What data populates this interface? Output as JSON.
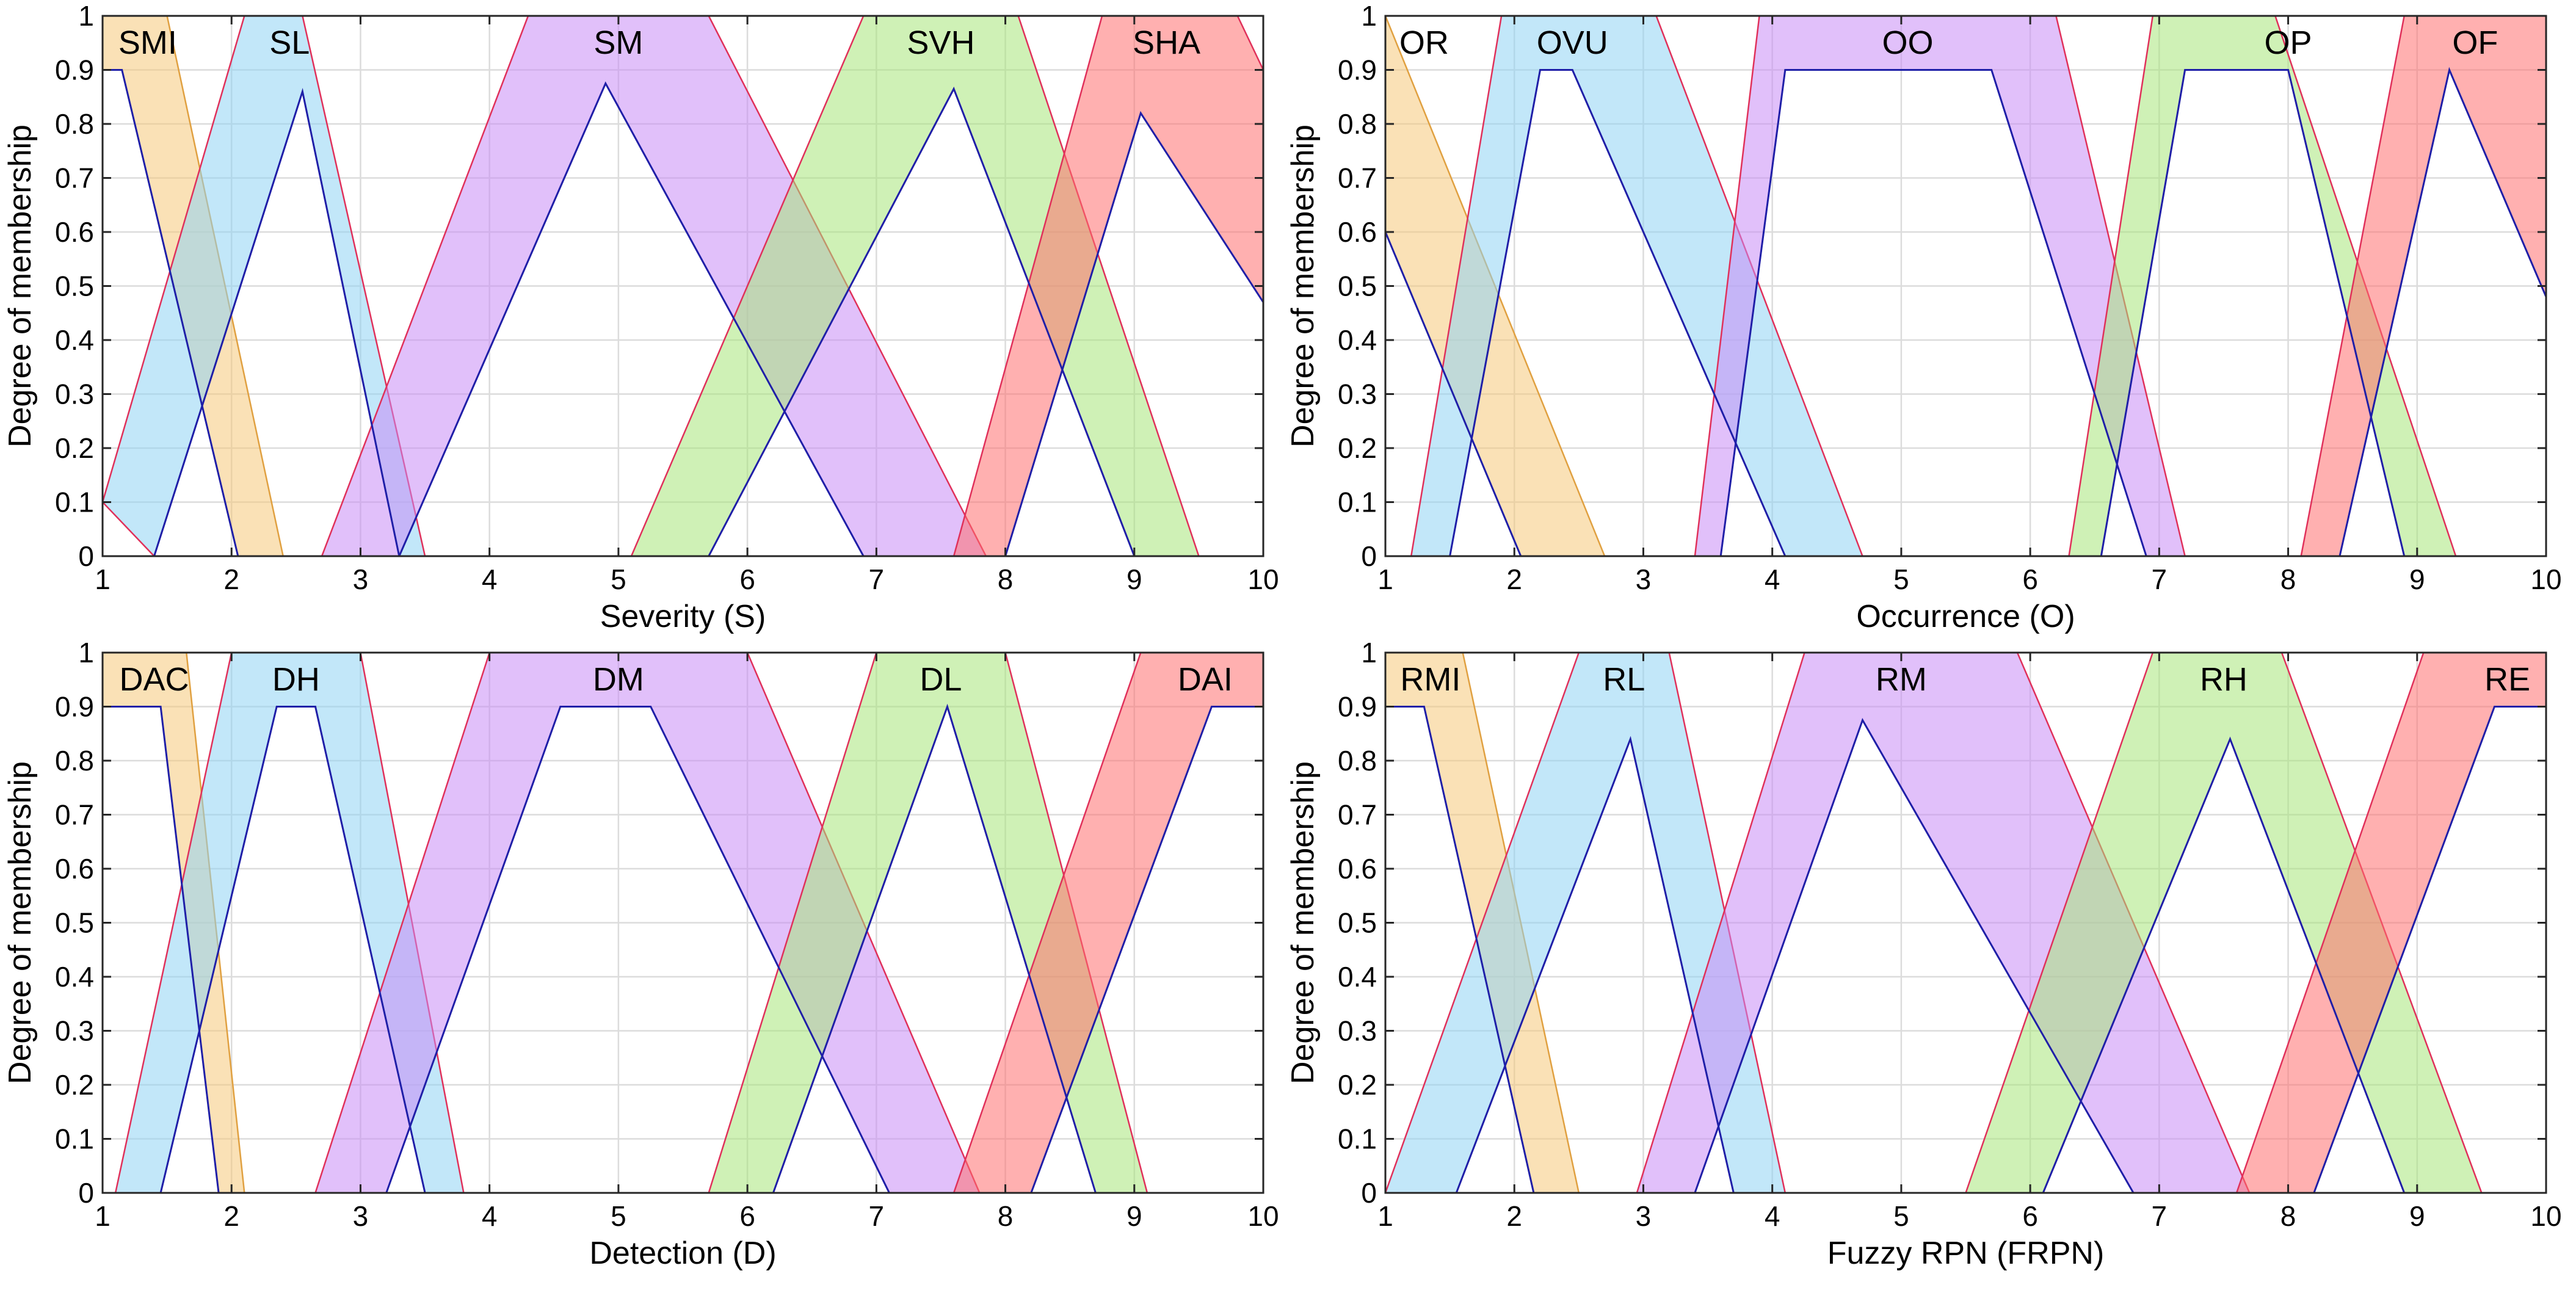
{
  "chart_data": [
    {
      "type": "area",
      "xlabel": "Severity (S)",
      "ylabel": "Degree of membership",
      "xlim": [
        1,
        10
      ],
      "ylim": [
        0,
        1
      ],
      "xticks": [
        "1",
        "2",
        "3",
        "4",
        "5",
        "6",
        "7",
        "8",
        "9",
        "10"
      ],
      "yticks": [
        "0",
        "0.1",
        "0.2",
        "0.3",
        "0.4",
        "0.5",
        "0.6",
        "0.7",
        "0.8",
        "0.9",
        "1"
      ],
      "grid": true,
      "series": [
        {
          "name": "SMI",
          "label_x": 1.35,
          "color": "#f5c97a",
          "upper": [
            [
              1,
              1
            ],
            [
              1.5,
              1
            ],
            [
              2.4,
              0
            ]
          ],
          "lower": [
            [
              1,
              0.9
            ],
            [
              1.15,
              0.9
            ],
            [
              2.05,
              0
            ]
          ]
        },
        {
          "name": "SL",
          "label_x": 2.45,
          "color": "#8fd3f4",
          "upper": [
            [
              1,
              0.1
            ],
            [
              2.1,
              1
            ],
            [
              2.55,
              1
            ],
            [
              3.5,
              0
            ]
          ],
          "lower": [
            [
              1.4,
              0
            ],
            [
              2.55,
              0.86
            ],
            [
              3.3,
              0
            ]
          ]
        },
        {
          "name": "SM",
          "label_x": 5.0,
          "color": "#c98cf5",
          "upper": [
            [
              2.7,
              0
            ],
            [
              4.3,
              1
            ],
            [
              5.7,
              1
            ],
            [
              7.85,
              0
            ]
          ],
          "lower": [
            [
              3.3,
              0
            ],
            [
              4.9,
              0.875
            ],
            [
              6.9,
              0
            ]
          ]
        },
        {
          "name": "SVH",
          "label_x": 7.5,
          "color": "#a8e67a",
          "upper": [
            [
              5.1,
              0
            ],
            [
              6.9,
              1
            ],
            [
              8.1,
              1
            ],
            [
              9.5,
              0
            ]
          ],
          "lower": [
            [
              5.7,
              0
            ],
            [
              7.6,
              0.865
            ],
            [
              9.0,
              0
            ]
          ]
        },
        {
          "name": "SHA",
          "label_x": 9.25,
          "color": "#ff6f6f",
          "upper": [
            [
              7.6,
              0
            ],
            [
              8.75,
              1
            ],
            [
              9.8,
              1
            ],
            [
              10,
              0.9
            ]
          ],
          "lower": [
            [
              8.0,
              0
            ],
            [
              9.05,
              0.82
            ],
            [
              10,
              0.47
            ]
          ]
        }
      ]
    },
    {
      "type": "area",
      "xlabel": "Occurrence (O)",
      "ylabel": "Degree of membership",
      "xlim": [
        1,
        10
      ],
      "ylim": [
        0,
        1
      ],
      "xticks": [
        "1",
        "2",
        "3",
        "4",
        "5",
        "6",
        "7",
        "8",
        "9",
        "10"
      ],
      "yticks": [
        "0",
        "0.1",
        "0.2",
        "0.3",
        "0.4",
        "0.5",
        "0.6",
        "0.7",
        "0.8",
        "0.9",
        "1"
      ],
      "grid": true,
      "series": [
        {
          "name": "OR",
          "label_x": 1.3,
          "color": "#f5c97a",
          "upper": [
            [
              1,
              1
            ],
            [
              2.7,
              0
            ]
          ],
          "lower": [
            [
              1,
              0.6
            ],
            [
              2.05,
              0
            ]
          ]
        },
        {
          "name": "OVU",
          "label_x": 2.45,
          "color": "#8fd3f4",
          "upper": [
            [
              1.2,
              0
            ],
            [
              1.9,
              1
            ],
            [
              3.1,
              1
            ],
            [
              4.7,
              0
            ]
          ],
          "lower": [
            [
              1.5,
              0
            ],
            [
              2.2,
              0.9
            ],
            [
              2.45,
              0.9
            ],
            [
              4.1,
              0
            ]
          ]
        },
        {
          "name": "OO",
          "label_x": 5.05,
          "color": "#c98cf5",
          "upper": [
            [
              3.4,
              0
            ],
            [
              3.9,
              1
            ],
            [
              6.2,
              1
            ],
            [
              7.2,
              0
            ]
          ],
          "lower": [
            [
              3.6,
              0
            ],
            [
              4.1,
              0.9
            ],
            [
              5.7,
              0.9
            ],
            [
              6.9,
              0
            ]
          ]
        },
        {
          "name": "OP",
          "label_x": 8.0,
          "color": "#a8e67a",
          "upper": [
            [
              6.3,
              0
            ],
            [
              6.95,
              1
            ],
            [
              7.9,
              1
            ],
            [
              9.3,
              0
            ]
          ],
          "lower": [
            [
              6.55,
              0
            ],
            [
              7.2,
              0.9
            ],
            [
              8.0,
              0.9
            ],
            [
              8.9,
              0
            ]
          ]
        },
        {
          "name": "OF",
          "label_x": 9.45,
          "color": "#ff6f6f",
          "upper": [
            [
              8.1,
              0
            ],
            [
              8.9,
              1
            ],
            [
              10,
              1
            ]
          ],
          "lower": [
            [
              8.4,
              0
            ],
            [
              9.25,
              0.9
            ],
            [
              10,
              0.48
            ]
          ]
        }
      ]
    },
    {
      "type": "area",
      "xlabel": "Detection (D)",
      "ylabel": "Degree of membership",
      "xlim": [
        1,
        10
      ],
      "ylim": [
        0,
        1
      ],
      "xticks": [
        "1",
        "2",
        "3",
        "4",
        "5",
        "6",
        "7",
        "8",
        "9",
        "10"
      ],
      "yticks": [
        "0",
        "0.1",
        "0.2",
        "0.3",
        "0.4",
        "0.5",
        "0.6",
        "0.7",
        "0.8",
        "0.9",
        "1"
      ],
      "grid": true,
      "series": [
        {
          "name": "DAC",
          "label_x": 1.4,
          "color": "#f5c97a",
          "upper": [
            [
              1,
              1
            ],
            [
              1.65,
              1
            ],
            [
              2.1,
              0
            ]
          ],
          "lower": [
            [
              1,
              0.9
            ],
            [
              1.45,
              0.9
            ],
            [
              1.9,
              0
            ]
          ]
        },
        {
          "name": "DH",
          "label_x": 2.5,
          "color": "#8fd3f4",
          "upper": [
            [
              1.1,
              0
            ],
            [
              2.0,
              1
            ],
            [
              3.0,
              1
            ],
            [
              3.8,
              0
            ]
          ],
          "lower": [
            [
              1.45,
              0
            ],
            [
              2.35,
              0.9
            ],
            [
              2.65,
              0.9
            ],
            [
              3.5,
              0
            ]
          ]
        },
        {
          "name": "DM",
          "label_x": 5.0,
          "color": "#c98cf5",
          "upper": [
            [
              2.65,
              0
            ],
            [
              4.0,
              1
            ],
            [
              6.0,
              1
            ],
            [
              7.8,
              0
            ]
          ],
          "lower": [
            [
              3.2,
              0
            ],
            [
              4.55,
              0.9
            ],
            [
              5.25,
              0.9
            ],
            [
              7.1,
              0
            ]
          ]
        },
        {
          "name": "DL",
          "label_x": 7.5,
          "color": "#a8e67a",
          "upper": [
            [
              5.7,
              0
            ],
            [
              7.0,
              1
            ],
            [
              8.0,
              1
            ],
            [
              9.1,
              0
            ]
          ],
          "lower": [
            [
              6.2,
              0
            ],
            [
              7.55,
              0.9
            ],
            [
              8.7,
              0
            ]
          ]
        },
        {
          "name": "DAI",
          "label_x": 9.55,
          "color": "#ff6f6f",
          "upper": [
            [
              7.6,
              0
            ],
            [
              9.05,
              1
            ],
            [
              10,
              1
            ]
          ],
          "lower": [
            [
              8.2,
              0
            ],
            [
              9.6,
              0.9
            ],
            [
              10,
              0.9
            ]
          ]
        }
      ]
    },
    {
      "type": "area",
      "xlabel": "Fuzzy RPN (FRPN)",
      "ylabel": "Degree of membership",
      "xlim": [
        1,
        10
      ],
      "ylim": [
        0,
        1
      ],
      "xticks": [
        "1",
        "2",
        "3",
        "4",
        "5",
        "6",
        "7",
        "8",
        "9",
        "10"
      ],
      "yticks": [
        "0",
        "0.1",
        "0.2",
        "0.3",
        "0.4",
        "0.5",
        "0.6",
        "0.7",
        "0.8",
        "0.9",
        "1"
      ],
      "grid": true,
      "series": [
        {
          "name": "RMI",
          "label_x": 1.35,
          "color": "#f5c97a",
          "upper": [
            [
              1,
              1
            ],
            [
              1.6,
              1
            ],
            [
              2.5,
              0
            ]
          ],
          "lower": [
            [
              1,
              0.9
            ],
            [
              1.3,
              0.9
            ],
            [
              2.15,
              0
            ]
          ]
        },
        {
          "name": "RL",
          "label_x": 2.85,
          "color": "#8fd3f4",
          "upper": [
            [
              1,
              0
            ],
            [
              2.5,
              1
            ],
            [
              3.2,
              1
            ],
            [
              4.1,
              0
            ]
          ],
          "lower": [
            [
              1.55,
              0
            ],
            [
              2.9,
              0.84
            ],
            [
              3.7,
              0
            ]
          ]
        },
        {
          "name": "RM",
          "label_x": 5.0,
          "color": "#c98cf5",
          "upper": [
            [
              2.95,
              0
            ],
            [
              4.25,
              1
            ],
            [
              5.9,
              1
            ],
            [
              7.7,
              0
            ]
          ],
          "lower": [
            [
              3.4,
              0
            ],
            [
              4.7,
              0.875
            ],
            [
              6.8,
              0
            ]
          ]
        },
        {
          "name": "RH",
          "label_x": 7.5,
          "color": "#a8e67a",
          "upper": [
            [
              5.5,
              0
            ],
            [
              6.95,
              1
            ],
            [
              7.95,
              1
            ],
            [
              9.5,
              0
            ]
          ],
          "lower": [
            [
              6.1,
              0
            ],
            [
              7.55,
              0.84
            ],
            [
              8.9,
              0
            ]
          ]
        },
        {
          "name": "RE",
          "label_x": 9.7,
          "color": "#ff6f6f",
          "upper": [
            [
              7.6,
              0
            ],
            [
              9.05,
              1
            ],
            [
              10,
              1
            ]
          ],
          "lower": [
            [
              8.2,
              0
            ],
            [
              9.6,
              0.9
            ],
            [
              10,
              0.9
            ]
          ]
        }
      ]
    }
  ]
}
